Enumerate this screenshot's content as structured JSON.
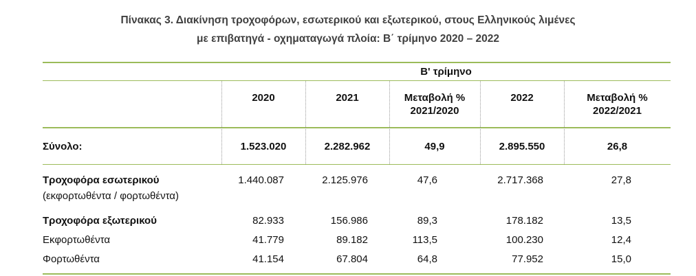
{
  "title": [
    "Πίνακας 3. Διακίνηση τροχοφόρων, εσωτερικού και εξωτερικού, στους Ελληνικούς λιμένες",
    "με επιβατηγά - οχηματαγωγά πλοία: Β΄ τρίμηνο 2020 – 2022"
  ],
  "table": {
    "group_header": "Β' τρίμηνο",
    "columns": [
      "2020",
      "2021",
      "Μεταβολή %\n2021/2020",
      "2022",
      "Μεταβολή %\n2022/2021"
    ],
    "rows": [
      {
        "label": "Σύνολο:",
        "bold": true,
        "values": [
          "1.523.020",
          "2.282.962",
          "49,9",
          "2.895.550",
          "26,8"
        ]
      },
      {
        "label": "Τροχοφόρα εσωτερικού",
        "note": "(εκφορτωθέντα / φορτωθέντα)",
        "bold": true,
        "values": [
          "1.440.087",
          "2.125.976",
          "47,6",
          "2.717.368",
          "27,8"
        ]
      },
      {
        "label": "Τροχοφόρα εξωτερικού",
        "bold": true,
        "values": [
          "82.933",
          "156.986",
          "89,3",
          "178.182",
          "13,5"
        ]
      },
      {
        "label": "Εκφορτωθέντα",
        "bold": false,
        "values": [
          "41.779",
          "89.182",
          "113,5",
          "100.230",
          "12,4"
        ]
      },
      {
        "label": "Φορτωθέντα",
        "bold": false,
        "values": [
          "41.154",
          "67.804",
          "64,8",
          "77.952",
          "15,0"
        ]
      }
    ]
  }
}
